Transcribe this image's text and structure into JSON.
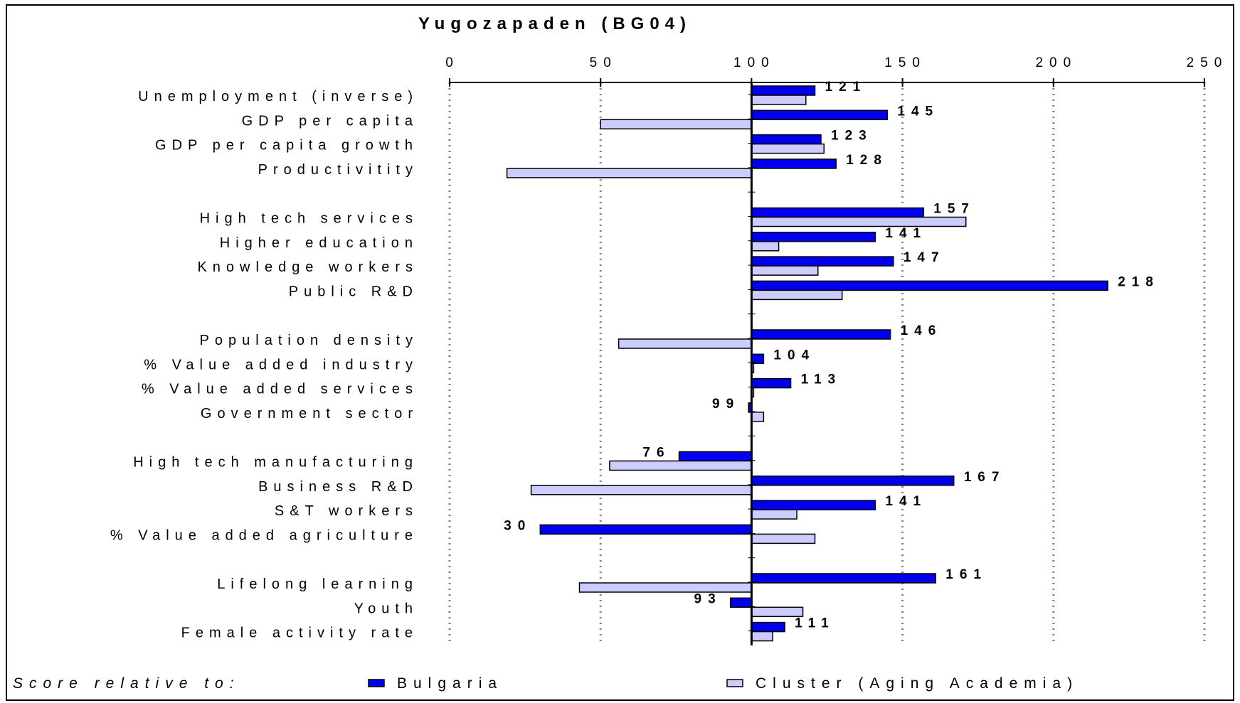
{
  "chart_data": {
    "type": "bar",
    "orientation": "horizontal",
    "title": "Yugozapaden (BG04)",
    "xlim": [
      0,
      250
    ],
    "x_ticks": [
      0,
      50,
      100,
      150,
      200,
      250
    ],
    "baseline": 100,
    "grid": "vertical-dotted",
    "legend_position": "bottom",
    "legend_lead": "Score relative to:",
    "groups": [
      [
        {
          "label": "Unemployment (inverse)",
          "bulgaria": 121,
          "cluster": 118,
          "bulgaria_label": "121"
        },
        {
          "label": "GDP per capita",
          "bulgaria": 145,
          "cluster": 50,
          "bulgaria_label": "145"
        },
        {
          "label": "GDP per capita growth",
          "bulgaria": 123,
          "cluster": 124,
          "bulgaria_label": "123"
        },
        {
          "label": "Productivitity",
          "bulgaria": 128,
          "cluster": 19,
          "bulgaria_label": "128"
        }
      ],
      [
        {
          "label": "High tech services",
          "bulgaria": 157,
          "cluster": 171,
          "bulgaria_label": "157"
        },
        {
          "label": "Higher education",
          "bulgaria": 141,
          "cluster": 109,
          "bulgaria_label": "141"
        },
        {
          "label": "Knowledge workers",
          "bulgaria": 147,
          "cluster": 122,
          "bulgaria_label": "147"
        },
        {
          "label": "Public R&D",
          "bulgaria": 218,
          "cluster": 130,
          "bulgaria_label": "218"
        }
      ],
      [
        {
          "label": "Population density",
          "bulgaria": 146,
          "cluster": 56,
          "bulgaria_label": "146"
        },
        {
          "label": "% Value added industry",
          "bulgaria": 104,
          "cluster": 100,
          "bulgaria_label": "104"
        },
        {
          "label": "% Value added services",
          "bulgaria": 113,
          "cluster": 100,
          "bulgaria_label": "113"
        },
        {
          "label": "Government sector",
          "bulgaria": 99,
          "cluster": 104,
          "bulgaria_label": "99"
        }
      ],
      [
        {
          "label": "High tech manufacturing",
          "bulgaria": 76,
          "cluster": 53,
          "bulgaria_label": "76"
        },
        {
          "label": "Business R&D",
          "bulgaria": 167,
          "cluster": 27,
          "bulgaria_label": "167"
        },
        {
          "label": "S&T workers",
          "bulgaria": 141,
          "cluster": 115,
          "bulgaria_label": "141"
        },
        {
          "label": "% Value added agriculture",
          "bulgaria": 30,
          "cluster": 121,
          "bulgaria_label": "30"
        }
      ],
      [
        {
          "label": "Lifelong learning",
          "bulgaria": 161,
          "cluster": 43,
          "bulgaria_label": "161"
        },
        {
          "label": "Youth",
          "bulgaria": 93,
          "cluster": 117,
          "bulgaria_label": "93"
        },
        {
          "label": "Female activity rate",
          "bulgaria": 111,
          "cluster": 107,
          "bulgaria_label": "111"
        }
      ]
    ],
    "series": [
      {
        "key": "bulgaria",
        "name": "Bulgaria",
        "color": "#0000ee"
      },
      {
        "key": "cluster",
        "name": "Cluster (Aging Academia)",
        "color": "#ccccff"
      }
    ]
  }
}
